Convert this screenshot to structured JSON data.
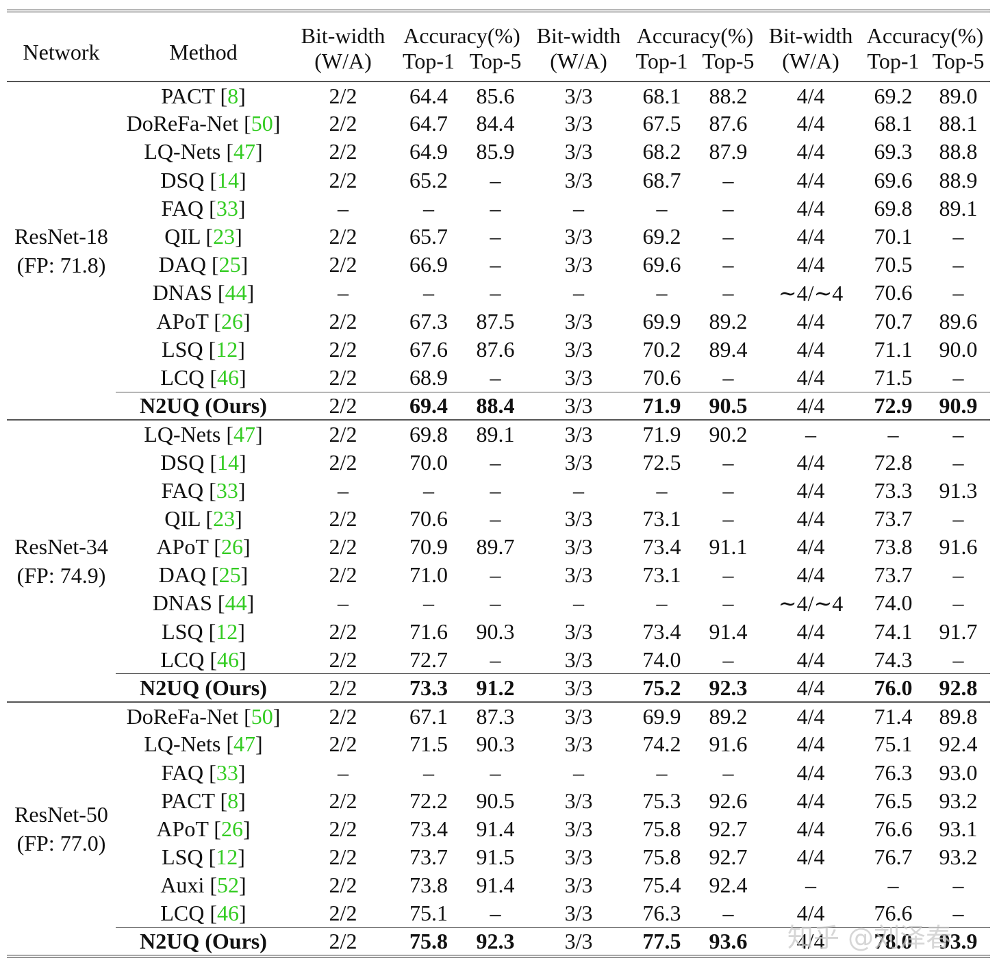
{
  "table": {
    "headers": {
      "network": "Network",
      "method": "Method",
      "bitwidth": "Bit-width",
      "bitwidth_sub": "(W/A)",
      "accuracy": "Accuracy(%)",
      "top1": "Top-1",
      "top5": "Top-5"
    },
    "groups": [
      {
        "network": "ResNet-18",
        "fp": "(FP: 71.8)",
        "rows": [
          {
            "method": "PACT",
            "ref": "8",
            "c": [
              "2/2",
              "64.4",
              "85.6",
              "3/3",
              "68.1",
              "88.2",
              "4/4",
              "69.2",
              "89.0"
            ]
          },
          {
            "method": "DoReFa-Net",
            "ref": "50",
            "c": [
              "2/2",
              "64.7",
              "84.4",
              "3/3",
              "67.5",
              "87.6",
              "4/4",
              "68.1",
              "88.1"
            ]
          },
          {
            "method": "LQ-Nets",
            "ref": "47",
            "c": [
              "2/2",
              "64.9",
              "85.9",
              "3/3",
              "68.2",
              "87.9",
              "4/4",
              "69.3",
              "88.8"
            ]
          },
          {
            "method": "DSQ",
            "ref": "14",
            "c": [
              "2/2",
              "65.2",
              "–",
              "3/3",
              "68.7",
              "–",
              "4/4",
              "69.6",
              "88.9"
            ]
          },
          {
            "method": "FAQ",
            "ref": "33",
            "c": [
              "–",
              "–",
              "–",
              "–",
              "–",
              "–",
              "4/4",
              "69.8",
              "89.1"
            ]
          },
          {
            "method": "QIL",
            "ref": "23",
            "c": [
              "2/2",
              "65.7",
              "–",
              "3/3",
              "69.2",
              "–",
              "4/4",
              "70.1",
              "–"
            ]
          },
          {
            "method": "DAQ",
            "ref": "25",
            "c": [
              "2/2",
              "66.9",
              "–",
              "3/3",
              "69.6",
              "–",
              "4/4",
              "70.5",
              "–"
            ]
          },
          {
            "method": "DNAS",
            "ref": "44",
            "c": [
              "–",
              "–",
              "–",
              "–",
              "–",
              "–",
              "∼4/∼4",
              "70.6",
              "–"
            ]
          },
          {
            "method": "APoT",
            "ref": "26",
            "c": [
              "2/2",
              "67.3",
              "87.5",
              "3/3",
              "69.9",
              "89.2",
              "4/4",
              "70.7",
              "89.6"
            ]
          },
          {
            "method": "LSQ",
            "ref": "12",
            "c": [
              "2/2",
              "67.6",
              "87.6",
              "3/3",
              "70.2",
              "89.4",
              "4/4",
              "71.1",
              "90.0"
            ]
          },
          {
            "method": "LCQ",
            "ref": "46",
            "c": [
              "2/2",
              "68.9",
              "–",
              "3/3",
              "70.6",
              "–",
              "4/4",
              "71.5",
              "–"
            ]
          },
          {
            "method": "N2UQ (Ours)",
            "ref": "",
            "ours": true,
            "c": [
              "2/2",
              "69.4",
              "88.4",
              "3/3",
              "71.9",
              "90.5",
              "4/4",
              "72.9",
              "90.9"
            ]
          }
        ]
      },
      {
        "network": "ResNet-34",
        "fp": "(FP: 74.9)",
        "rows": [
          {
            "method": "LQ-Nets",
            "ref": "47",
            "c": [
              "2/2",
              "69.8",
              "89.1",
              "3/3",
              "71.9",
              "90.2",
              "–",
              "–",
              "–"
            ]
          },
          {
            "method": "DSQ",
            "ref": "14",
            "c": [
              "2/2",
              "70.0",
              "–",
              "3/3",
              "72.5",
              "–",
              "4/4",
              "72.8",
              "–"
            ]
          },
          {
            "method": "FAQ",
            "ref": "33",
            "c": [
              "–",
              "–",
              "–",
              "–",
              "–",
              "–",
              "4/4",
              "73.3",
              "91.3"
            ]
          },
          {
            "method": "QIL",
            "ref": "23",
            "c": [
              "2/2",
              "70.6",
              "–",
              "3/3",
              "73.1",
              "–",
              "4/4",
              "73.7",
              "–"
            ]
          },
          {
            "method": "APoT",
            "ref": "26",
            "c": [
              "2/2",
              "70.9",
              "89.7",
              "3/3",
              "73.4",
              "91.1",
              "4/4",
              "73.8",
              "91.6"
            ]
          },
          {
            "method": "DAQ",
            "ref": "25",
            "c": [
              "2/2",
              "71.0",
              "–",
              "3/3",
              "73.1",
              "–",
              "4/4",
              "73.7",
              "–"
            ]
          },
          {
            "method": "DNAS",
            "ref": "44",
            "c": [
              "–",
              "–",
              "–",
              "–",
              "–",
              "–",
              "∼4/∼4",
              "74.0",
              "–"
            ]
          },
          {
            "method": "LSQ",
            "ref": "12",
            "c": [
              "2/2",
              "71.6",
              "90.3",
              "3/3",
              "73.4",
              "91.4",
              "4/4",
              "74.1",
              "91.7"
            ]
          },
          {
            "method": "LCQ",
            "ref": "46",
            "c": [
              "2/2",
              "72.7",
              "–",
              "3/3",
              "74.0",
              "–",
              "4/4",
              "74.3",
              "–"
            ]
          },
          {
            "method": "N2UQ (Ours)",
            "ref": "",
            "ours": true,
            "c": [
              "2/2",
              "73.3",
              "91.2",
              "3/3",
              "75.2",
              "92.3",
              "4/4",
              "76.0",
              "92.8"
            ]
          }
        ]
      },
      {
        "network": "ResNet-50",
        "fp": "(FP: 77.0)",
        "rows": [
          {
            "method": "DoReFa-Net",
            "ref": "50",
            "c": [
              "2/2",
              "67.1",
              "87.3",
              "3/3",
              "69.9",
              "89.2",
              "4/4",
              "71.4",
              "89.8"
            ]
          },
          {
            "method": "LQ-Nets",
            "ref": "47",
            "c": [
              "2/2",
              "71.5",
              "90.3",
              "3/3",
              "74.2",
              "91.6",
              "4/4",
              "75.1",
              "92.4"
            ]
          },
          {
            "method": "FAQ",
            "ref": "33",
            "c": [
              "–",
              "–",
              "–",
              "–",
              "–",
              "–",
              "4/4",
              "76.3",
              "93.0"
            ]
          },
          {
            "method": "PACT",
            "ref": "8",
            "c": [
              "2/2",
              "72.2",
              "90.5",
              "3/3",
              "75.3",
              "92.6",
              "4/4",
              "76.5",
              "93.2"
            ]
          },
          {
            "method": "APoT",
            "ref": "26",
            "c": [
              "2/2",
              "73.4",
              "91.4",
              "3/3",
              "75.8",
              "92.7",
              "4/4",
              "76.6",
              "93.1"
            ]
          },
          {
            "method": "LSQ",
            "ref": "12",
            "c": [
              "2/2",
              "73.7",
              "91.5",
              "3/3",
              "75.8",
              "92.7",
              "4/4",
              "76.7",
              "93.2"
            ]
          },
          {
            "method": "Auxi",
            "ref": "52",
            "c": [
              "2/2",
              "73.8",
              "91.4",
              "3/3",
              "75.4",
              "92.4",
              "–",
              "–",
              "–"
            ]
          },
          {
            "method": "LCQ",
            "ref": "46",
            "c": [
              "2/2",
              "75.1",
              "–",
              "3/3",
              "76.3",
              "–",
              "4/4",
              "76.6",
              "–"
            ]
          },
          {
            "method": "N2UQ (Ours)",
            "ref": "",
            "ours": true,
            "c": [
              "2/2",
              "75.8",
              "92.3",
              "3/3",
              "77.5",
              "93.6",
              "4/4",
              "78.0",
              "93.9"
            ]
          }
        ]
      }
    ]
  },
  "watermark": "知乎 @刘泽春",
  "colors": {
    "ref_link": "#33cc22",
    "text": "#111111",
    "rule": "#555555"
  }
}
